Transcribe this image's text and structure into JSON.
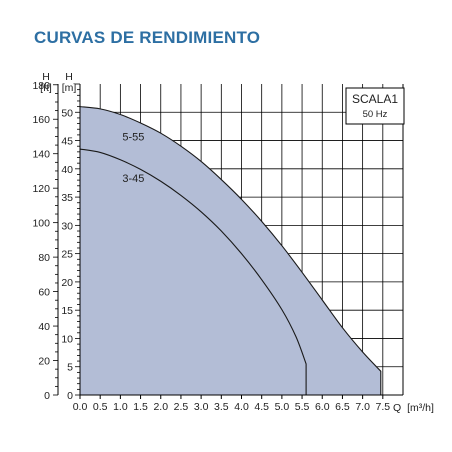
{
  "page": {
    "title": "CURVAS DE RENDIMIENTO"
  },
  "colors": {
    "title": "#2d6fa3",
    "fill": "#b3bdd6",
    "curve": "#1a1a1a",
    "grid": "#000000"
  },
  "chart_data": {
    "type": "area",
    "title": "",
    "box": {
      "model": "SCALA1",
      "frequency": "50 Hz"
    },
    "xlabel": "Q [m³/h]",
    "x_unit_label": "Q",
    "x_unit": "[m³/h]",
    "xlim": [
      0,
      8
    ],
    "x_ticks": [
      0.0,
      0.5,
      1.0,
      1.5,
      2.0,
      2.5,
      3.0,
      3.5,
      4.0,
      4.5,
      5.0,
      5.5,
      6.0,
      6.5,
      7.0,
      7.5
    ],
    "x_tick_labels": [
      "0.0",
      "0.5",
      "1.0",
      "1.5",
      "2.0",
      "2.5",
      "3.0",
      "3.5",
      "4.0",
      "4.5",
      "5.0",
      "5.5",
      "6.0",
      "6.5",
      "7.0",
      "7.5"
    ],
    "ylabel_m": "H [m]",
    "ylim_m": [
      0,
      55
    ],
    "y_ticks_m": [
      0,
      5,
      10,
      15,
      20,
      25,
      30,
      35,
      40,
      45,
      50
    ],
    "ylabel_ft": "H [ft]",
    "y_ticks_ft": [
      0,
      20,
      40,
      60,
      80,
      100,
      120,
      140,
      160,
      180
    ],
    "axis_head": {
      "h": "H",
      "unit_ft": "[ft]",
      "unit_m": "[m]"
    },
    "grid": true,
    "series": [
      {
        "name": "5-55",
        "end_q": 7.45,
        "points": [
          [
            0,
            51
          ],
          [
            0.5,
            50.6
          ],
          [
            1.0,
            49.6
          ],
          [
            1.5,
            48.1
          ],
          [
            2.0,
            46.3
          ],
          [
            2.5,
            44.0
          ],
          [
            3.0,
            41.3
          ],
          [
            3.5,
            38.1
          ],
          [
            4.0,
            34.6
          ],
          [
            4.5,
            30.7
          ],
          [
            5.0,
            26.4
          ],
          [
            5.5,
            21.7
          ],
          [
            6.0,
            16.8
          ],
          [
            6.5,
            11.9
          ],
          [
            7.0,
            7.6
          ],
          [
            7.45,
            4.2
          ]
        ]
      },
      {
        "name": "3-45",
        "end_q": 5.6,
        "points": [
          [
            0,
            43.5
          ],
          [
            0.5,
            42.9
          ],
          [
            1.0,
            41.6
          ],
          [
            1.5,
            39.9
          ],
          [
            2.0,
            37.8
          ],
          [
            2.5,
            35.3
          ],
          [
            3.0,
            32.4
          ],
          [
            3.5,
            29.0
          ],
          [
            4.0,
            25.0
          ],
          [
            4.5,
            20.4
          ],
          [
            5.0,
            15.1
          ],
          [
            5.35,
            10.3
          ],
          [
            5.6,
            5.5
          ]
        ]
      }
    ]
  }
}
